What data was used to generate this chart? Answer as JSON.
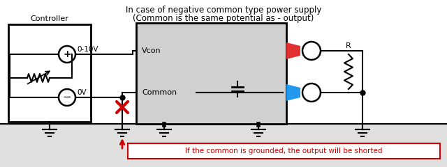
{
  "title_line1": "In case of negative common type power supply",
  "title_line2": "(Common is the same potential as - output)",
  "controller_label": "Controller",
  "label_010v": "0-10V",
  "label_0v": "0V",
  "label_vcon": "Vcon",
  "label_common": "Common",
  "label_r": "R",
  "warning_text": "If the common is grounded, the output will be shorted",
  "bg_color": "#ffffff",
  "ps_box_color": "#d0d0d0",
  "red_connector_color": "#e03030",
  "blue_connector_color": "#2299ee",
  "line_color": "#000000",
  "x_color": "#cc0000",
  "arrow_color": "#cc0000",
  "title_fontsize": 8.5,
  "label_fontsize": 8.0,
  "small_fontsize": 7.5,
  "ground_gray": "#e0e0e0"
}
